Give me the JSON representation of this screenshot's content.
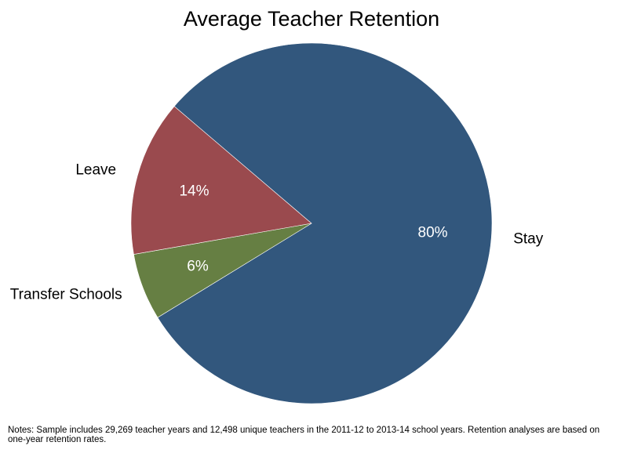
{
  "chart_data": {
    "type": "pie",
    "title": "Average Teacher Retention",
    "categories": [
      "Stay",
      "Transfer Schools",
      "Leave"
    ],
    "values": [
      80,
      6,
      14
    ],
    "value_labels": [
      "80%",
      "6%",
      "14%"
    ],
    "colors": [
      "#32577d",
      "#667f43",
      "#9a4a4e"
    ],
    "start_angle_deg": 139.5,
    "direction": "clockwise",
    "legend": "none",
    "notes": "Notes: Sample includes 29,269 teacher years and 12,498 unique teachers in the 2011-12 to 2013-14 school years. Retention analyses are based on one-year retention rates."
  }
}
